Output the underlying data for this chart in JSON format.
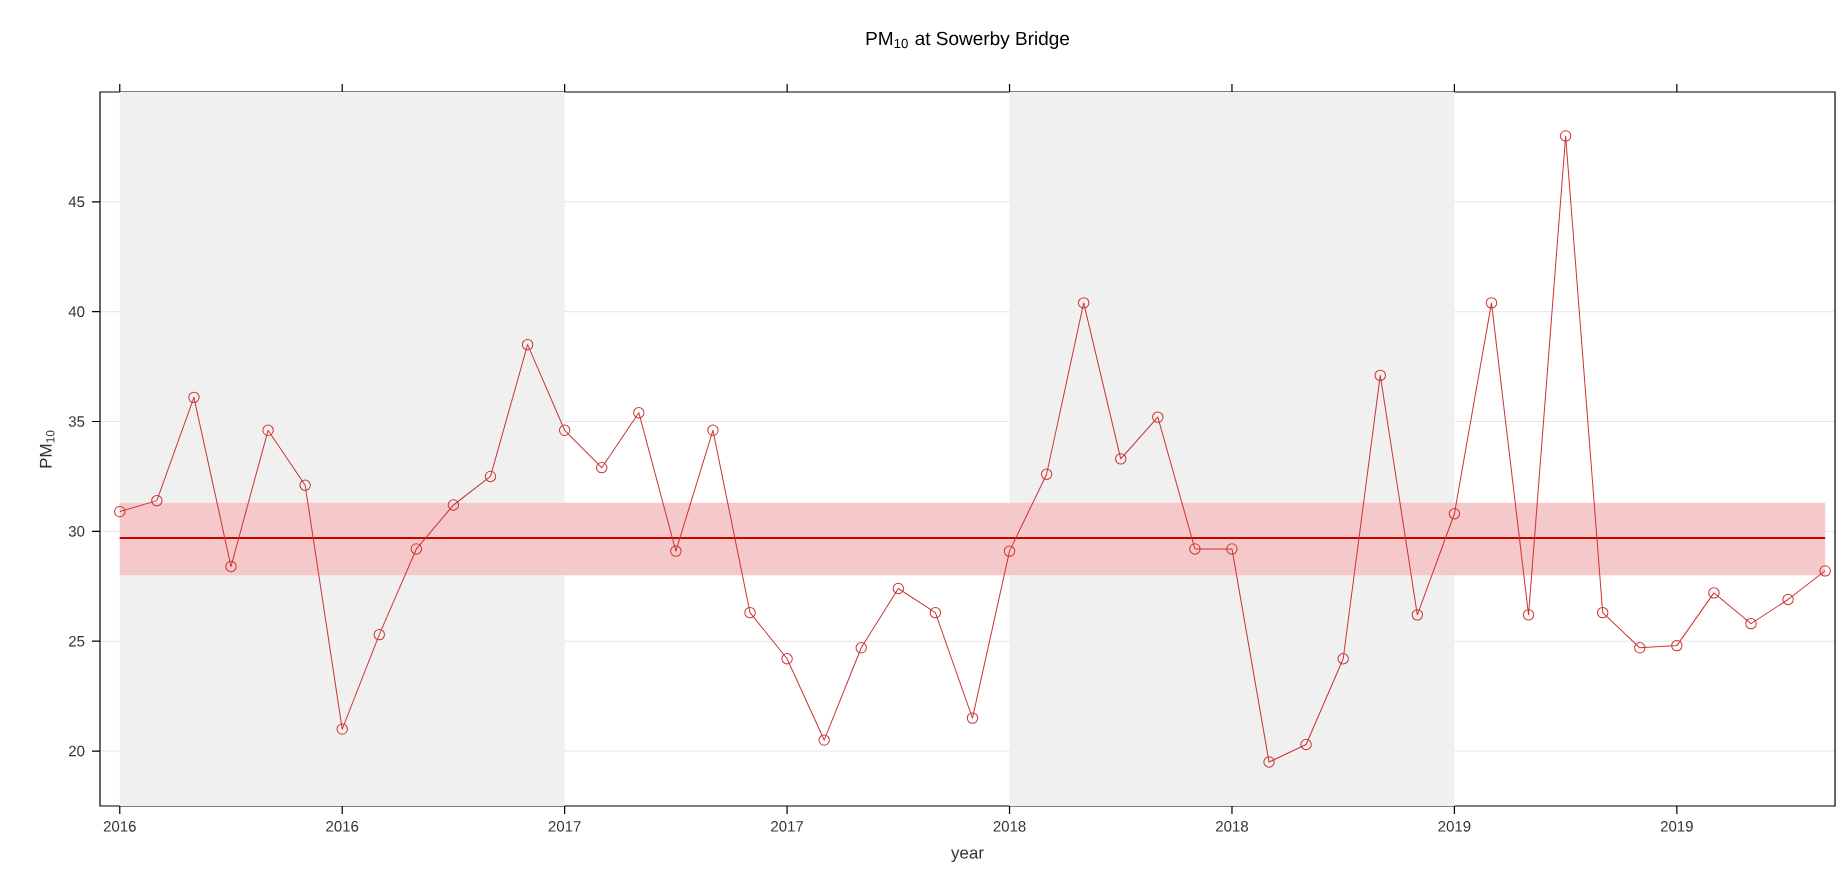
{
  "chart_data": {
    "type": "line",
    "title": "PM$_{10}$ at Sowerby Bridge",
    "xlabel": "year",
    "ylabel": "PM$_{10}$",
    "x": [
      "2016-01",
      "2016-02",
      "2016-03",
      "2016-04",
      "2016-05",
      "2016-06",
      "2016-07",
      "2016-08",
      "2016-09",
      "2016-10",
      "2016-11",
      "2016-12",
      "2017-01",
      "2017-02",
      "2017-03",
      "2017-04",
      "2017-05",
      "2017-06",
      "2017-07",
      "2017-08",
      "2017-09",
      "2017-10",
      "2017-11",
      "2017-12",
      "2018-01",
      "2018-02",
      "2018-03",
      "2018-04",
      "2018-05",
      "2018-06",
      "2018-07",
      "2018-08",
      "2018-09",
      "2018-10",
      "2018-11",
      "2018-12",
      "2019-01",
      "2019-02",
      "2019-03",
      "2019-04",
      "2019-05",
      "2019-06",
      "2019-07",
      "2019-08",
      "2019-09",
      "2019-10",
      "2019-11"
    ],
    "series": [
      {
        "color": "#cc3333",
        "values": [
          30.9,
          31.4,
          36.1,
          28.4,
          34.6,
          32.1,
          21.0,
          25.3,
          29.2,
          31.2,
          32.5,
          38.5,
          34.6,
          32.9,
          35.4,
          29.1,
          34.6,
          26.3,
          24.2,
          20.5,
          24.7,
          27.4,
          26.3,
          21.5,
          29.1,
          32.6,
          40.4,
          33.3,
          35.2,
          29.2,
          29.2,
          19.5,
          20.3,
          24.2,
          37.1,
          26.2,
          30.8,
          40.4,
          26.2,
          48.0,
          26.3,
          24.7,
          24.8,
          27.2,
          25.8,
          26.9,
          28.2
        ]
      }
    ],
    "xlim": [
      "2015-12-15",
      "2019-11-09"
    ],
    "xticks": [
      {
        "value": "2016-01",
        "label": "2016"
      },
      {
        "value": "2016-07",
        "label": "2016"
      },
      {
        "value": "2017-01",
        "label": "2017"
      },
      {
        "value": "2017-07",
        "label": "2017"
      },
      {
        "value": "2018-01",
        "label": "2018"
      },
      {
        "value": "2018-07",
        "label": "2018"
      },
      {
        "value": "2019-01",
        "label": "2019"
      },
      {
        "value": "2019-07",
        "label": "2019"
      }
    ],
    "ylim": [
      17.5,
      50
    ],
    "yticks": [
      20,
      25,
      30,
      35,
      40,
      45
    ],
    "grid": "y",
    "marker": "circle",
    "line_style": "solid",
    "ref_lines": [
      {
        "axis": "y",
        "value": 29.7,
        "color": "#cc0000"
      }
    ],
    "bands": [
      {
        "axis": "x",
        "from": "2016-01",
        "to": "2017-01",
        "color": "#f0f0f0"
      },
      {
        "axis": "x",
        "from": "2018-01",
        "to": "2019-01",
        "color": "#f0f0f0"
      },
      {
        "axis": "y",
        "from": 28.0,
        "to": 31.3,
        "color": "#f5c8ca"
      }
    ]
  }
}
